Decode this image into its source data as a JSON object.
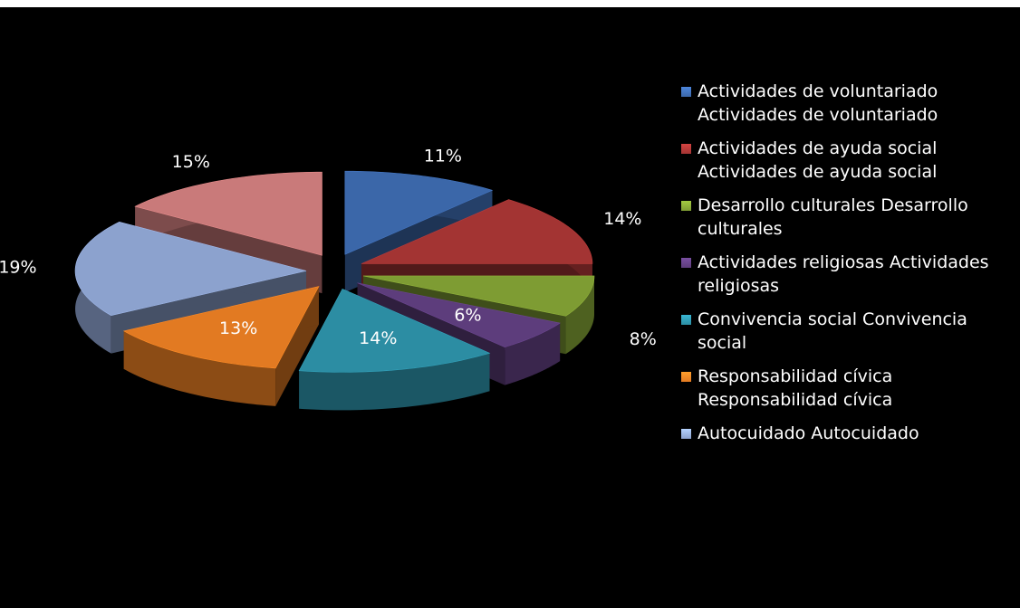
{
  "chart_data": {
    "type": "pie",
    "categories": [
      "Actividades de voluntariado Actividades de voluntariado",
      "Actividades de ayuda social Actividades de ayuda social",
      "Desarrollo culturales Desarrollo culturales",
      "Actividades religiosas Actividades religiosas",
      "Convivencia social Convivencia social",
      "Responsabilidad cívica Responsabilidad cívica",
      "Autocuidado Autocuidado",
      null
    ],
    "values": [
      11,
      14,
      8,
      6,
      14,
      13,
      19,
      15
    ],
    "value_labels": [
      "11%",
      "14%",
      "8%",
      "6%",
      "14%",
      "13%",
      "19%",
      "15%"
    ],
    "colors": [
      "#3b67a9",
      "#a33433",
      "#7e9c33",
      "#5d3d7c",
      "#2c8da3",
      "#e27a22",
      "#8ca2ce",
      "#c97a7a"
    ],
    "legend": "right"
  }
}
